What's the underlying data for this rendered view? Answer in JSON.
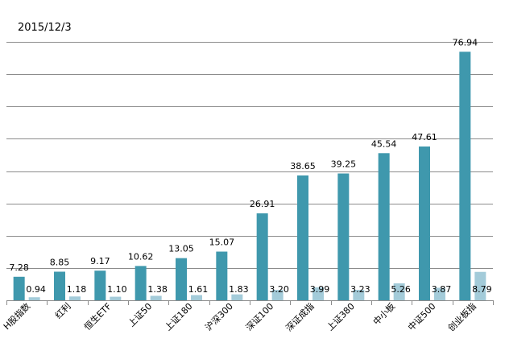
{
  "chart_data": {
    "type": "bar",
    "title": "2015/12/3",
    "xlabel": "",
    "ylabel": "",
    "ylim": [
      0,
      80
    ],
    "grid": true,
    "categories": [
      "H股指数",
      "红利",
      "恒生ETF",
      "上证50",
      "上证180",
      "沪深300",
      "深证100",
      "深证成指",
      "上证380",
      "中小板",
      "中证500",
      "创业板指"
    ],
    "series": [
      {
        "name": "series-1",
        "color": "#3f98ad",
        "values": [
          7.28,
          8.85,
          9.17,
          10.62,
          13.05,
          15.07,
          26.91,
          38.65,
          39.25,
          45.54,
          47.61,
          76.94
        ]
      },
      {
        "name": "series-2",
        "color": "#a3cbd9",
        "values": [
          0.94,
          1.18,
          1.1,
          1.38,
          1.61,
          1.83,
          3.2,
          3.99,
          3.23,
          5.26,
          3.87,
          8.79
        ]
      }
    ]
  }
}
